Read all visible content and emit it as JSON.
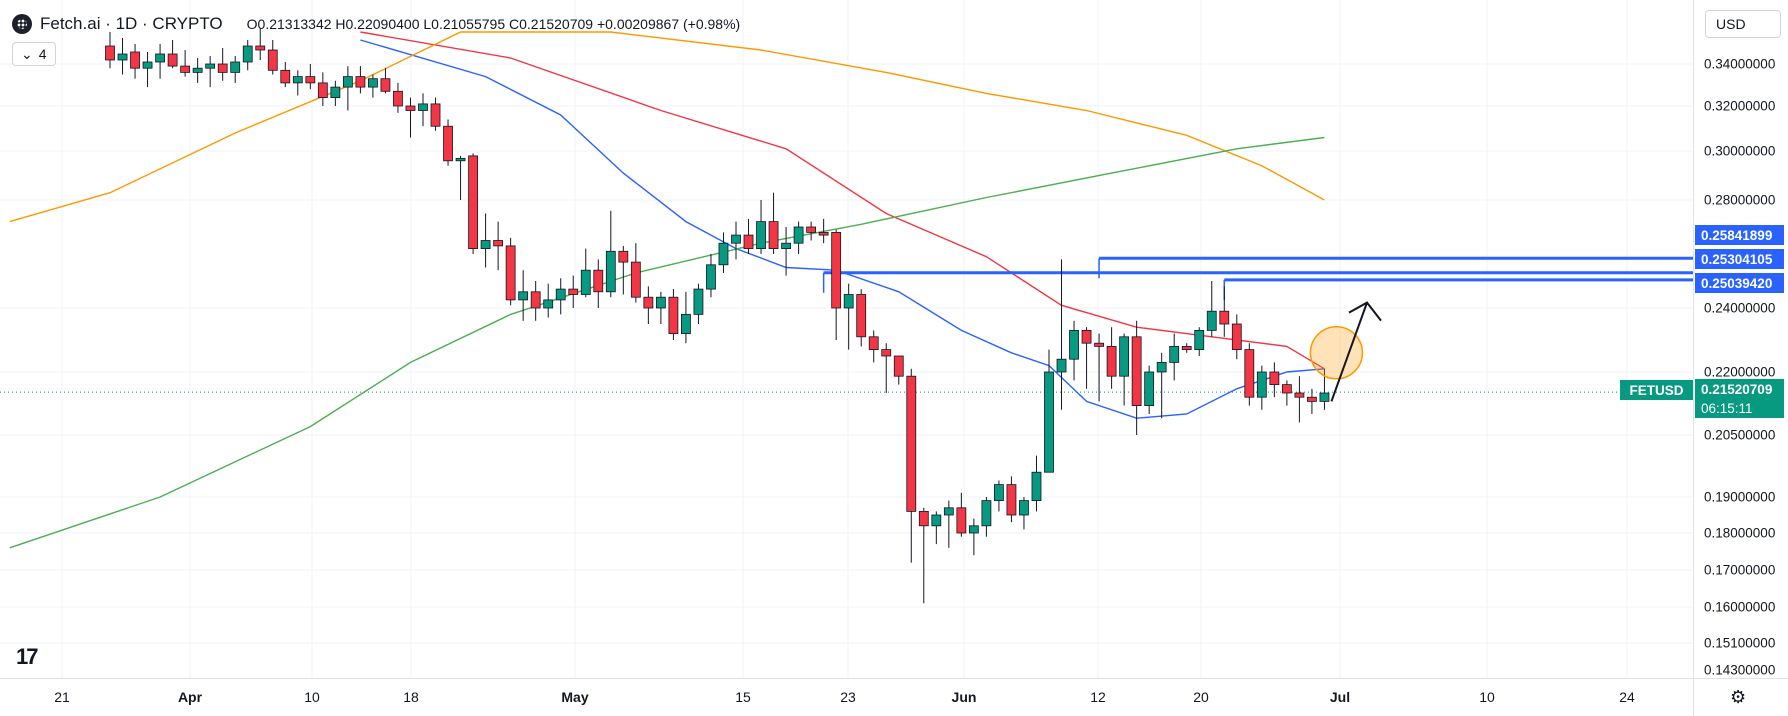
{
  "header": {
    "symbol": "Fetch.ai · 1D · CRYPTO",
    "ohlc_text": "O0.21313342 H0.22090400 L0.21055795 C0.21520709 +0.00209867 (+0.98%)",
    "indicators_count": "4",
    "indicators_toggle_icon": "chevron-down-icon"
  },
  "currency": {
    "label": "USD"
  },
  "price_axis": {
    "ticks": [
      "0.34000000",
      "0.32000000",
      "0.30000000",
      "0.28000000",
      "0.24000000",
      "0.22000000",
      "0.20500000",
      "0.19000000",
      "0.18000000",
      "0.17000000",
      "0.16000000",
      "0.15100000",
      "0.14300000"
    ]
  },
  "price_badges": {
    "level1": "0.25841899",
    "level2": "0.25304105",
    "level3": "0.25039420",
    "last_price": "0.21520709",
    "countdown": "06:15:11",
    "symbol": "FETUSD",
    "level_color": "#2962ff",
    "last_color": "#089981"
  },
  "time_axis": {
    "labels": [
      "21",
      "Apr",
      "10",
      "18",
      "May",
      "15",
      "23",
      "Jun",
      "12",
      "20",
      "Jul",
      "10",
      "24"
    ]
  },
  "colors": {
    "up": "#089981",
    "down": "#f23645",
    "ma_blue": "#2962ff",
    "ma_red": "#f23645",
    "ma_orange": "#ff9800",
    "ma_green": "#4caf50",
    "highlight_circle": "#ff9800"
  },
  "chart_data": {
    "type": "candlestick",
    "candles": [
      {
        "o": 0.349,
        "h": 0.356,
        "l": 0.338,
        "c": 0.342
      },
      {
        "o": 0.342,
        "h": 0.353,
        "l": 0.335,
        "c": 0.345
      },
      {
        "o": 0.346,
        "h": 0.35,
        "l": 0.333,
        "c": 0.338
      },
      {
        "o": 0.338,
        "h": 0.346,
        "l": 0.329,
        "c": 0.341
      },
      {
        "o": 0.341,
        "h": 0.35,
        "l": 0.333,
        "c": 0.345
      },
      {
        "o": 0.345,
        "h": 0.352,
        "l": 0.338,
        "c": 0.339
      },
      {
        "o": 0.339,
        "h": 0.347,
        "l": 0.334,
        "c": 0.336
      },
      {
        "o": 0.336,
        "h": 0.343,
        "l": 0.331,
        "c": 0.338
      },
      {
        "o": 0.338,
        "h": 0.344,
        "l": 0.329,
        "c": 0.34
      },
      {
        "o": 0.34,
        "h": 0.348,
        "l": 0.332,
        "c": 0.336
      },
      {
        "o": 0.336,
        "h": 0.344,
        "l": 0.331,
        "c": 0.341
      },
      {
        "o": 0.341,
        "h": 0.352,
        "l": 0.337,
        "c": 0.349
      },
      {
        "o": 0.349,
        "h": 0.358,
        "l": 0.342,
        "c": 0.347
      },
      {
        "o": 0.347,
        "h": 0.352,
        "l": 0.335,
        "c": 0.337
      },
      {
        "o": 0.337,
        "h": 0.341,
        "l": 0.329,
        "c": 0.331
      },
      {
        "o": 0.331,
        "h": 0.337,
        "l": 0.325,
        "c": 0.334
      },
      {
        "o": 0.334,
        "h": 0.34,
        "l": 0.328,
        "c": 0.331
      },
      {
        "o": 0.331,
        "h": 0.336,
        "l": 0.32,
        "c": 0.324
      },
      {
        "o": 0.324,
        "h": 0.332,
        "l": 0.32,
        "c": 0.329
      },
      {
        "o": 0.329,
        "h": 0.339,
        "l": 0.318,
        "c": 0.334
      },
      {
        "o": 0.334,
        "h": 0.339,
        "l": 0.326,
        "c": 0.329
      },
      {
        "o": 0.329,
        "h": 0.335,
        "l": 0.324,
        "c": 0.333
      },
      {
        "o": 0.333,
        "h": 0.338,
        "l": 0.326,
        "c": 0.327
      },
      {
        "o": 0.327,
        "h": 0.331,
        "l": 0.317,
        "c": 0.32
      },
      {
        "o": 0.32,
        "h": 0.324,
        "l": 0.306,
        "c": 0.318
      },
      {
        "o": 0.318,
        "h": 0.326,
        "l": 0.311,
        "c": 0.321
      },
      {
        "o": 0.321,
        "h": 0.324,
        "l": 0.309,
        "c": 0.311
      },
      {
        "o": 0.311,
        "h": 0.314,
        "l": 0.294,
        "c": 0.296
      },
      {
        "o": 0.296,
        "h": 0.298,
        "l": 0.28,
        "c": 0.297
      },
      {
        "o": 0.298,
        "h": 0.299,
        "l": 0.26,
        "c": 0.262
      },
      {
        "o": 0.262,
        "h": 0.275,
        "l": 0.255,
        "c": 0.265
      },
      {
        "o": 0.265,
        "h": 0.272,
        "l": 0.254,
        "c": 0.263
      },
      {
        "o": 0.263,
        "h": 0.266,
        "l": 0.241,
        "c": 0.243
      },
      {
        "o": 0.243,
        "h": 0.254,
        "l": 0.236,
        "c": 0.246
      },
      {
        "o": 0.246,
        "h": 0.25,
        "l": 0.236,
        "c": 0.24
      },
      {
        "o": 0.24,
        "h": 0.249,
        "l": 0.237,
        "c": 0.243
      },
      {
        "o": 0.243,
        "h": 0.251,
        "l": 0.238,
        "c": 0.247
      },
      {
        "o": 0.247,
        "h": 0.252,
        "l": 0.24,
        "c": 0.245
      },
      {
        "o": 0.245,
        "h": 0.262,
        "l": 0.244,
        "c": 0.254
      },
      {
        "o": 0.254,
        "h": 0.258,
        "l": 0.24,
        "c": 0.246
      },
      {
        "o": 0.246,
        "h": 0.276,
        "l": 0.244,
        "c": 0.261
      },
      {
        "o": 0.261,
        "h": 0.263,
        "l": 0.245,
        "c": 0.257
      },
      {
        "o": 0.257,
        "h": 0.264,
        "l": 0.242,
        "c": 0.244
      },
      {
        "o": 0.244,
        "h": 0.248,
        "l": 0.235,
        "c": 0.24
      },
      {
        "o": 0.24,
        "h": 0.246,
        "l": 0.235,
        "c": 0.244
      },
      {
        "o": 0.244,
        "h": 0.247,
        "l": 0.23,
        "c": 0.232
      },
      {
        "o": 0.232,
        "h": 0.246,
        "l": 0.229,
        "c": 0.238
      },
      {
        "o": 0.238,
        "h": 0.249,
        "l": 0.235,
        "c": 0.247
      },
      {
        "o": 0.247,
        "h": 0.26,
        "l": 0.244,
        "c": 0.256
      },
      {
        "o": 0.256,
        "h": 0.268,
        "l": 0.253,
        "c": 0.264
      },
      {
        "o": 0.264,
        "h": 0.272,
        "l": 0.258,
        "c": 0.267
      },
      {
        "o": 0.267,
        "h": 0.273,
        "l": 0.26,
        "c": 0.262
      },
      {
        "o": 0.262,
        "h": 0.28,
        "l": 0.26,
        "c": 0.272
      },
      {
        "o": 0.272,
        "h": 0.283,
        "l": 0.26,
        "c": 0.262
      },
      {
        "o": 0.262,
        "h": 0.27,
        "l": 0.252,
        "c": 0.264
      },
      {
        "o": 0.264,
        "h": 0.272,
        "l": 0.26,
        "c": 0.27
      },
      {
        "o": 0.27,
        "h": 0.272,
        "l": 0.265,
        "c": 0.268
      },
      {
        "o": 0.268,
        "h": 0.273,
        "l": 0.264,
        "c": 0.267
      },
      {
        "o": 0.268,
        "h": 0.269,
        "l": 0.23,
        "c": 0.24
      },
      {
        "o": 0.24,
        "h": 0.249,
        "l": 0.227,
        "c": 0.245
      },
      {
        "o": 0.245,
        "h": 0.247,
        "l": 0.228,
        "c": 0.231
      },
      {
        "o": 0.231,
        "h": 0.233,
        "l": 0.223,
        "c": 0.227
      },
      {
        "o": 0.227,
        "h": 0.229,
        "l": 0.215,
        "c": 0.225
      },
      {
        "o": 0.225,
        "h": 0.225,
        "l": 0.217,
        "c": 0.219
      },
      {
        "o": 0.219,
        "h": 0.221,
        "l": 0.172,
        "c": 0.186
      },
      {
        "o": 0.186,
        "h": 0.187,
        "l": 0.161,
        "c": 0.182
      },
      {
        "o": 0.182,
        "h": 0.186,
        "l": 0.177,
        "c": 0.185
      },
      {
        "o": 0.185,
        "h": 0.189,
        "l": 0.176,
        "c": 0.187
      },
      {
        "o": 0.187,
        "h": 0.191,
        "l": 0.179,
        "c": 0.18
      },
      {
        "o": 0.18,
        "h": 0.184,
        "l": 0.174,
        "c": 0.182
      },
      {
        "o": 0.182,
        "h": 0.19,
        "l": 0.179,
        "c": 0.189
      },
      {
        "o": 0.189,
        "h": 0.194,
        "l": 0.186,
        "c": 0.193
      },
      {
        "o": 0.193,
        "h": 0.195,
        "l": 0.183,
        "c": 0.185
      },
      {
        "o": 0.185,
        "h": 0.19,
        "l": 0.181,
        "c": 0.189
      },
      {
        "o": 0.189,
        "h": 0.2,
        "l": 0.186,
        "c": 0.196
      },
      {
        "o": 0.196,
        "h": 0.227,
        "l": 0.196,
        "c": 0.22
      },
      {
        "o": 0.22,
        "h": 0.258,
        "l": 0.211,
        "c": 0.224
      },
      {
        "o": 0.224,
        "h": 0.236,
        "l": 0.218,
        "c": 0.233
      },
      {
        "o": 0.233,
        "h": 0.234,
        "l": 0.216,
        "c": 0.229
      },
      {
        "o": 0.229,
        "h": 0.232,
        "l": 0.213,
        "c": 0.228
      },
      {
        "o": 0.228,
        "h": 0.234,
        "l": 0.216,
        "c": 0.219
      },
      {
        "o": 0.219,
        "h": 0.232,
        "l": 0.212,
        "c": 0.231
      },
      {
        "o": 0.231,
        "h": 0.236,
        "l": 0.205,
        "c": 0.212
      },
      {
        "o": 0.212,
        "h": 0.222,
        "l": 0.21,
        "c": 0.22
      },
      {
        "o": 0.22,
        "h": 0.226,
        "l": 0.209,
        "c": 0.223
      },
      {
        "o": 0.223,
        "h": 0.232,
        "l": 0.218,
        "c": 0.228
      },
      {
        "o": 0.228,
        "h": 0.229,
        "l": 0.226,
        "c": 0.227
      },
      {
        "o": 0.227,
        "h": 0.234,
        "l": 0.225,
        "c": 0.233
      },
      {
        "o": 0.233,
        "h": 0.25,
        "l": 0.231,
        "c": 0.239
      },
      {
        "o": 0.239,
        "h": 0.248,
        "l": 0.231,
        "c": 0.235
      },
      {
        "o": 0.235,
        "h": 0.238,
        "l": 0.224,
        "c": 0.227
      },
      {
        "o": 0.227,
        "h": 0.229,
        "l": 0.212,
        "c": 0.214
      },
      {
        "o": 0.214,
        "h": 0.222,
        "l": 0.211,
        "c": 0.22
      },
      {
        "o": 0.22,
        "h": 0.223,
        "l": 0.214,
        "c": 0.217
      },
      {
        "o": 0.217,
        "h": 0.218,
        "l": 0.212,
        "c": 0.215
      },
      {
        "o": 0.215,
        "h": 0.219,
        "l": 0.208,
        "c": 0.214
      },
      {
        "o": 0.214,
        "h": 0.216,
        "l": 0.21,
        "c": 0.213
      },
      {
        "o": 0.213,
        "h": 0.221,
        "l": 0.211,
        "c": 0.215
      }
    ],
    "moving_averages": [
      {
        "color": "#2962ff",
        "points": [
          [
            20,
            0.352
          ],
          [
            30,
            0.334
          ],
          [
            36,
            0.316
          ],
          [
            41,
            0.291
          ],
          [
            46,
            0.272
          ],
          [
            50,
            0.262
          ],
          [
            54,
            0.255
          ],
          [
            58,
            0.254
          ],
          [
            63,
            0.246
          ],
          [
            68,
            0.233
          ],
          [
            72,
            0.226
          ],
          [
            75,
            0.222
          ],
          [
            78,
            0.213
          ],
          [
            82,
            0.209
          ],
          [
            86,
            0.21
          ],
          [
            90,
            0.216
          ],
          [
            94,
            0.22
          ],
          [
            97,
            0.221
          ]
        ]
      },
      {
        "color": "#f23645",
        "points": [
          [
            20,
            0.356
          ],
          [
            32,
            0.343
          ],
          [
            44,
            0.318
          ],
          [
            54,
            0.301
          ],
          [
            62,
            0.275
          ],
          [
            70,
            0.259
          ],
          [
            76,
            0.241
          ],
          [
            82,
            0.234
          ],
          [
            88,
            0.231
          ],
          [
            94,
            0.228
          ],
          [
            97,
            0.221
          ]
        ]
      },
      {
        "color": "#ff9800",
        "points": [
          [
            -8,
            0.272
          ],
          [
            0,
            0.283
          ],
          [
            10,
            0.308
          ],
          [
            20,
            0.332
          ],
          [
            28,
            0.356
          ],
          [
            40,
            0.356
          ],
          [
            52,
            0.347
          ],
          [
            62,
            0.336
          ],
          [
            70,
            0.326
          ],
          [
            78,
            0.318
          ],
          [
            86,
            0.307
          ],
          [
            92,
            0.294
          ],
          [
            97,
            0.28
          ]
        ]
      },
      {
        "color": "#4caf50",
        "points": [
          [
            -8,
            0.176
          ],
          [
            4,
            0.19
          ],
          [
            16,
            0.207
          ],
          [
            24,
            0.223
          ],
          [
            32,
            0.238
          ],
          [
            42,
            0.253
          ],
          [
            52,
            0.264
          ],
          [
            60,
            0.271
          ],
          [
            70,
            0.281
          ],
          [
            80,
            0.291
          ],
          [
            90,
            0.301
          ],
          [
            97,
            0.306
          ]
        ]
      }
    ],
    "horizontal_levels": [
      {
        "value": 0.25841899,
        "from_index": 79
      },
      {
        "value": 0.25304105,
        "from_index": 57
      },
      {
        "value": 0.2503942,
        "from_index": 89
      }
    ],
    "last_price": 0.21520709
  }
}
